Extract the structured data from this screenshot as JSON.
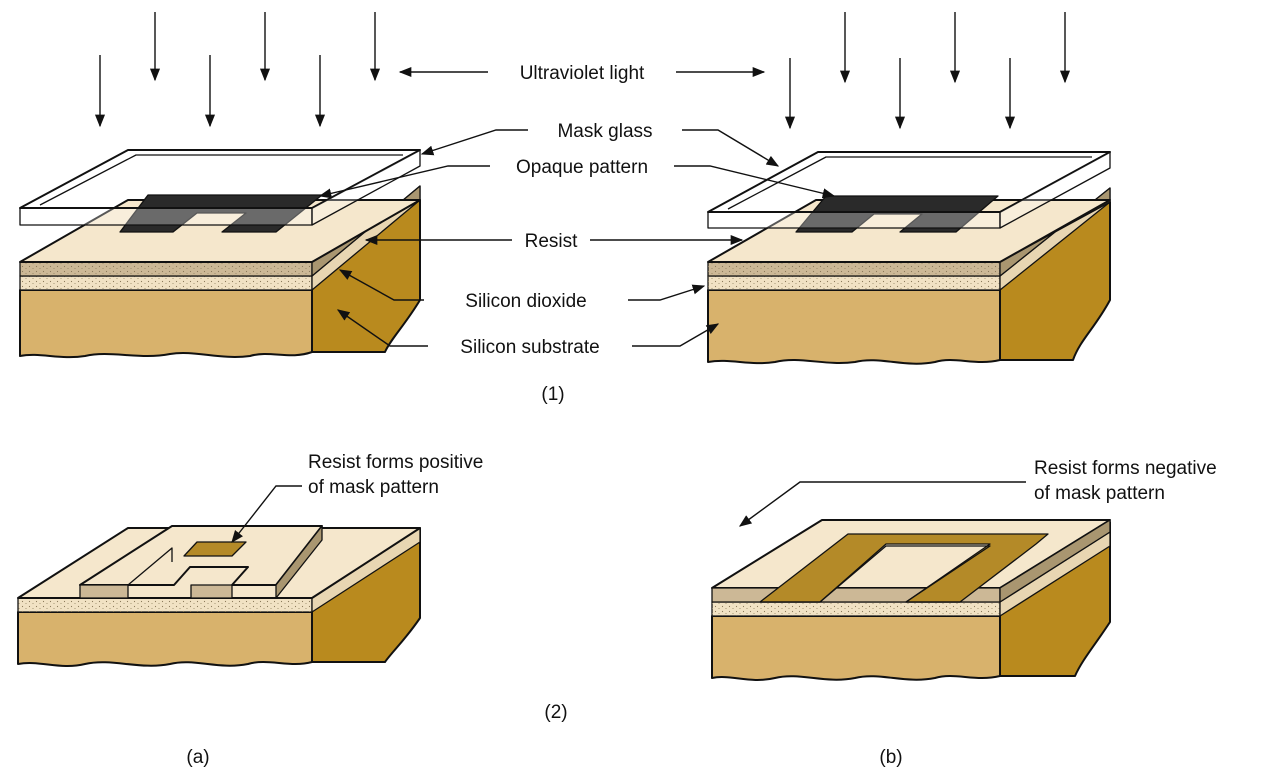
{
  "labels": {
    "uv_light": "Ultraviolet light",
    "mask_glass": "Mask glass",
    "opaque_pattern": "Opaque pattern",
    "resist": "Resist",
    "silicon_dioxide": "Silicon dioxide",
    "silicon_substrate": "Silicon substrate",
    "positive_line1": "Resist forms positive",
    "positive_line2": "of mask pattern",
    "negative_line1": "Resist forms negative",
    "negative_line2": "of mask pattern"
  },
  "captions": {
    "step1": "(1)",
    "step2": "(2)",
    "panel_a": "(a)",
    "panel_b": "(b)"
  },
  "colors": {
    "substrate_front": "#d8b26c",
    "substrate_side": "#b98a1e",
    "oxide": "#f1e2c4",
    "resist_top": "#f5e7cc",
    "resist_front": "#ccb896",
    "resist_side": "#a99670",
    "opaque": "#2a2a2a",
    "trench": "#b48a28"
  }
}
